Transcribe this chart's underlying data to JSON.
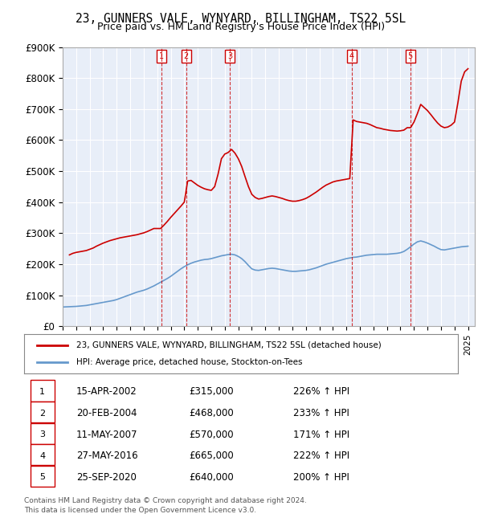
{
  "title": "23, GUNNERS VALE, WYNYARD, BILLINGHAM, TS22 5SL",
  "subtitle": "Price paid vs. HM Land Registry's House Price Index (HPI)",
  "legend_property": "23, GUNNERS VALE, WYNYARD, BILLINGHAM, TS22 5SL (detached house)",
  "legend_hpi": "HPI: Average price, detached house, Stockton-on-Tees",
  "footer1": "Contains HM Land Registry data © Crown copyright and database right 2024.",
  "footer2": "This data is licensed under the Open Government Licence v3.0.",
  "background_color": "#e8eef8",
  "plot_background": "#e8eef8",
  "ylim": [
    0,
    900000
  ],
  "yticks": [
    0,
    100000,
    200000,
    300000,
    400000,
    500000,
    600000,
    700000,
    800000,
    900000
  ],
  "ytick_labels": [
    "£0",
    "£100K",
    "£200K",
    "£300K",
    "£400K",
    "£500K",
    "£600K",
    "£700K",
    "£800K",
    "£900K"
  ],
  "xmin": 1995.0,
  "xmax": 2025.5,
  "property_color": "#cc0000",
  "hpi_color": "#6699cc",
  "sale_color": "#cc0000",
  "sale_line_color": "#cc0000",
  "sales": [
    {
      "num": 1,
      "year": 2002.29,
      "price": 315000,
      "label": "1",
      "date": "15-APR-2002",
      "pct": "226%",
      "dir": "↑"
    },
    {
      "num": 2,
      "year": 2004.13,
      "price": 468000,
      "label": "2",
      "date": "20-FEB-2004",
      "pct": "233%",
      "dir": "↑"
    },
    {
      "num": 3,
      "year": 2007.36,
      "price": 570000,
      "label": "3",
      "date": "11-MAY-2007",
      "pct": "171%",
      "dir": "↑"
    },
    {
      "num": 4,
      "year": 2016.41,
      "price": 665000,
      "label": "4",
      "date": "27-MAY-2016",
      "pct": "222%",
      "dir": "↑"
    },
    {
      "num": 5,
      "year": 2020.73,
      "price": 640000,
      "label": "5",
      "date": "25-SEP-2020",
      "pct": "200%",
      "dir": "↑"
    }
  ],
  "table_rows": [
    {
      "num": "1",
      "date": "15-APR-2002",
      "price": "£315,000",
      "hpi": "226% ↑ HPI"
    },
    {
      "num": "2",
      "date": "20-FEB-2004",
      "price": "£468,000",
      "hpi": "233% ↑ HPI"
    },
    {
      "num": "3",
      "date": "11-MAY-2007",
      "price": "£570,000",
      "hpi": "171% ↑ HPI"
    },
    {
      "num": "4",
      "date": "27-MAY-2016",
      "price": "£665,000",
      "hpi": "222% ↑ HPI"
    },
    {
      "num": "5",
      "date": "25-SEP-2020",
      "price": "£640,000",
      "hpi": "200% ↑ HPI"
    }
  ],
  "hpi_data_x": [
    1995.0,
    1995.25,
    1995.5,
    1995.75,
    1996.0,
    1996.25,
    1996.5,
    1996.75,
    1997.0,
    1997.25,
    1997.5,
    1997.75,
    1998.0,
    1998.25,
    1998.5,
    1998.75,
    1999.0,
    1999.25,
    1999.5,
    1999.75,
    2000.0,
    2000.25,
    2000.5,
    2000.75,
    2001.0,
    2001.25,
    2001.5,
    2001.75,
    2002.0,
    2002.25,
    2002.5,
    2002.75,
    2003.0,
    2003.25,
    2003.5,
    2003.75,
    2004.0,
    2004.25,
    2004.5,
    2004.75,
    2005.0,
    2005.25,
    2005.5,
    2005.75,
    2006.0,
    2006.25,
    2006.5,
    2006.75,
    2007.0,
    2007.25,
    2007.5,
    2007.75,
    2008.0,
    2008.25,
    2008.5,
    2008.75,
    2009.0,
    2009.25,
    2009.5,
    2009.75,
    2010.0,
    2010.25,
    2010.5,
    2010.75,
    2011.0,
    2011.25,
    2011.5,
    2011.75,
    2012.0,
    2012.25,
    2012.5,
    2012.75,
    2013.0,
    2013.25,
    2013.5,
    2013.75,
    2014.0,
    2014.25,
    2014.5,
    2014.75,
    2015.0,
    2015.25,
    2015.5,
    2015.75,
    2016.0,
    2016.25,
    2016.5,
    2016.75,
    2017.0,
    2017.25,
    2017.5,
    2017.75,
    2018.0,
    2018.25,
    2018.5,
    2018.75,
    2019.0,
    2019.25,
    2019.5,
    2019.75,
    2020.0,
    2020.25,
    2020.5,
    2020.75,
    2021.0,
    2021.25,
    2021.5,
    2021.75,
    2022.0,
    2022.25,
    2022.5,
    2022.75,
    2023.0,
    2023.25,
    2023.5,
    2023.75,
    2024.0,
    2024.25,
    2024.5,
    2024.75,
    2025.0
  ],
  "hpi_data_y": [
    62000,
    62500,
    63000,
    63500,
    64000,
    65000,
    66000,
    67000,
    69000,
    71000,
    73000,
    75000,
    77000,
    79000,
    81000,
    83000,
    86000,
    90000,
    94000,
    98000,
    102000,
    106000,
    110000,
    113000,
    116000,
    120000,
    125000,
    130000,
    136000,
    142000,
    148000,
    154000,
    161000,
    169000,
    177000,
    185000,
    192000,
    198000,
    203000,
    207000,
    210000,
    213000,
    215000,
    216000,
    218000,
    221000,
    224000,
    227000,
    229000,
    231000,
    232000,
    230000,
    225000,
    218000,
    208000,
    196000,
    185000,
    181000,
    180000,
    182000,
    184000,
    186000,
    187000,
    186000,
    184000,
    182000,
    180000,
    178000,
    177000,
    177000,
    178000,
    179000,
    180000,
    182000,
    185000,
    188000,
    192000,
    196000,
    200000,
    203000,
    206000,
    209000,
    212000,
    215000,
    218000,
    220000,
    222000,
    223000,
    225000,
    227000,
    229000,
    230000,
    231000,
    232000,
    232000,
    232000,
    232000,
    233000,
    234000,
    235000,
    237000,
    241000,
    248000,
    256000,
    265000,
    272000,
    275000,
    272000,
    268000,
    263000,
    258000,
    252000,
    247000,
    246000,
    248000,
    250000,
    252000,
    254000,
    256000,
    257000,
    258000
  ],
  "property_data_x": [
    1995.5,
    1995.75,
    1996.0,
    1996.25,
    1996.5,
    1996.75,
    1997.0,
    1997.25,
    1997.5,
    1997.75,
    1998.0,
    1998.25,
    1998.5,
    1998.75,
    1999.0,
    1999.25,
    1999.5,
    1999.75,
    2000.0,
    2000.25,
    2000.5,
    2000.75,
    2001.0,
    2001.25,
    2001.5,
    2001.75,
    2002.0,
    2002.25,
    2002.5,
    2002.75,
    2003.0,
    2003.25,
    2003.5,
    2003.75,
    2004.0,
    2004.25,
    2004.5,
    2004.75,
    2005.0,
    2005.25,
    2005.5,
    2005.75,
    2006.0,
    2006.25,
    2006.5,
    2006.75,
    2007.0,
    2007.25,
    2007.5,
    2007.75,
    2008.0,
    2008.25,
    2008.5,
    2008.75,
    2009.0,
    2009.25,
    2009.5,
    2009.75,
    2010.0,
    2010.25,
    2010.5,
    2010.75,
    2011.0,
    2011.25,
    2011.5,
    2011.75,
    2012.0,
    2012.25,
    2012.5,
    2012.75,
    2013.0,
    2013.25,
    2013.5,
    2013.75,
    2014.0,
    2014.25,
    2014.5,
    2014.75,
    2015.0,
    2015.25,
    2015.5,
    2015.75,
    2016.0,
    2016.25,
    2016.5,
    2016.75,
    2017.0,
    2017.25,
    2017.5,
    2017.75,
    2018.0,
    2018.25,
    2018.5,
    2018.75,
    2019.0,
    2019.25,
    2019.5,
    2019.75,
    2020.0,
    2020.25,
    2020.5,
    2020.75,
    2021.0,
    2021.25,
    2021.5,
    2021.75,
    2022.0,
    2022.25,
    2022.5,
    2022.75,
    2023.0,
    2023.25,
    2023.5,
    2023.75,
    2024.0,
    2024.25,
    2024.5,
    2024.75,
    2025.0
  ],
  "property_data_y": [
    230000,
    235000,
    238000,
    240000,
    242000,
    244000,
    248000,
    252000,
    258000,
    263000,
    268000,
    272000,
    276000,
    279000,
    282000,
    285000,
    287000,
    289000,
    291000,
    293000,
    295000,
    298000,
    301000,
    305000,
    310000,
    315000,
    315000,
    315000,
    326000,
    338000,
    351000,
    363000,
    375000,
    387000,
    400000,
    468000,
    470000,
    462000,
    454000,
    448000,
    443000,
    440000,
    438000,
    450000,
    490000,
    540000,
    555000,
    560000,
    570000,
    558000,
    540000,
    515000,
    482000,
    450000,
    425000,
    415000,
    410000,
    412000,
    415000,
    418000,
    420000,
    418000,
    415000,
    412000,
    408000,
    405000,
    403000,
    403000,
    405000,
    408000,
    412000,
    418000,
    425000,
    432000,
    440000,
    448000,
    455000,
    460000,
    465000,
    468000,
    470000,
    472000,
    474000,
    476000,
    665000,
    660000,
    658000,
    656000,
    654000,
    650000,
    645000,
    640000,
    638000,
    635000,
    633000,
    631000,
    630000,
    629000,
    630000,
    632000,
    640000,
    640000,
    658000,
    685000,
    715000,
    705000,
    695000,
    682000,
    668000,
    655000,
    645000,
    640000,
    642000,
    648000,
    658000,
    720000,
    790000,
    820000,
    830000
  ]
}
